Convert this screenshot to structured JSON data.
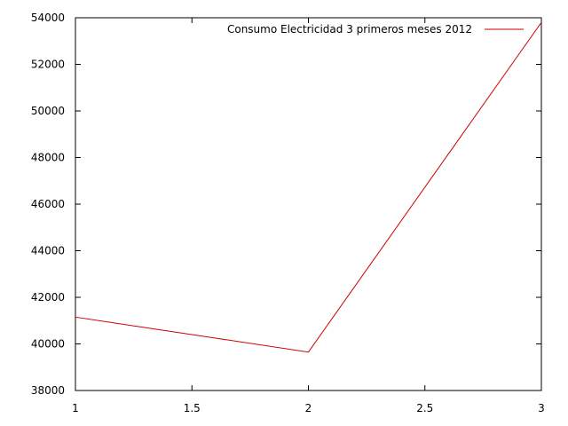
{
  "chart_data": {
    "type": "line",
    "title": "",
    "xlabel": "",
    "ylabel": "",
    "xlim": [
      1,
      3
    ],
    "ylim": [
      38000,
      54000
    ],
    "x_ticks": [
      1,
      1.5,
      2,
      2.5,
      3
    ],
    "x_tick_labels": [
      "1",
      "1.5",
      "2",
      "2.5",
      "3"
    ],
    "y_ticks": [
      38000,
      40000,
      42000,
      44000,
      46000,
      48000,
      50000,
      52000,
      54000
    ],
    "y_tick_labels": [
      "38000",
      "40000",
      "42000",
      "44000",
      "46000",
      "48000",
      "50000",
      "52000",
      "54000"
    ],
    "grid": false,
    "legend_position": "top-right",
    "series": [
      {
        "name": "Consumo Electricidad 3 primeros meses 2012",
        "color": "#cc0000",
        "x": [
          1,
          2,
          3
        ],
        "y": [
          41150,
          39650,
          53800
        ]
      }
    ]
  }
}
